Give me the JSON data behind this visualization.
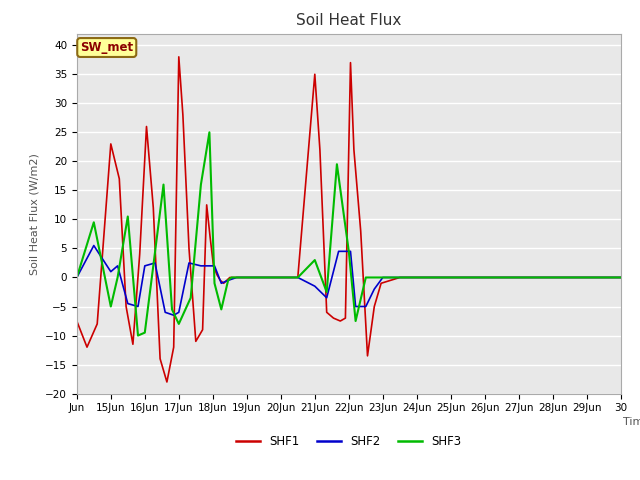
{
  "title": "Soil Heat Flux",
  "ylabel": "Soil Heat Flux (W/m2)",
  "xlabel": "Time",
  "ylim": [
    -20,
    42
  ],
  "yticks": [
    -20,
    -15,
    -10,
    -5,
    0,
    5,
    10,
    15,
    20,
    25,
    30,
    35,
    40
  ],
  "plot_bg_color": "#e8e8e8",
  "fig_bg_color": "#ffffff",
  "annotation_text": "SW_met",
  "annotation_bg": "#ffff99",
  "annotation_border": "#8b6914",
  "annotation_text_color": "#8b0000",
  "series_colors": [
    "#cc0000",
    "#0000cc",
    "#00bb00"
  ],
  "series_names": [
    "SHF1",
    "SHF2",
    "SHF3"
  ],
  "x_start_day": 14,
  "x_end_day": 30,
  "x_tick_days": [
    14,
    15,
    16,
    17,
    18,
    19,
    20,
    21,
    22,
    23,
    24,
    25,
    26,
    27,
    28,
    29,
    30
  ],
  "x_tick_labels": [
    "Jun",
    "15Jun",
    "16Jun",
    "17Jun",
    "18Jun",
    "19Jun",
    "20Jun",
    "21Jun",
    "22Jun",
    "23Jun",
    "24Jun",
    "25Jun",
    "26Jun",
    "27Jun",
    "28Jun",
    "29Jun",
    "30"
  ],
  "shf1_x": [
    14.0,
    14.3,
    14.6,
    15.0,
    15.25,
    15.45,
    15.65,
    15.85,
    16.05,
    16.25,
    16.45,
    16.65,
    16.85,
    17.0,
    17.12,
    17.3,
    17.5,
    17.7,
    17.82,
    17.92,
    18.02,
    18.12,
    18.22,
    18.32,
    18.5,
    18.7,
    18.9,
    19.05,
    19.2,
    19.5,
    20.0,
    20.5,
    21.0,
    21.15,
    21.35,
    21.55,
    21.75,
    21.9,
    22.05,
    22.15,
    22.35,
    22.55,
    22.75,
    22.95,
    23.5,
    24.0,
    25.0,
    26.0,
    27.0,
    28.0,
    29.0,
    30.0
  ],
  "shf1_y": [
    -7.5,
    -12.0,
    -8.0,
    23.0,
    17.0,
    -5.0,
    -11.5,
    4.0,
    26.0,
    12.0,
    -14.0,
    -18.0,
    -12.0,
    38.0,
    28.0,
    5.0,
    -11.0,
    -9.0,
    12.5,
    7.0,
    2.0,
    0.5,
    -0.5,
    -1.0,
    0.0,
    0.0,
    0.0,
    0.0,
    0.0,
    0.0,
    0.0,
    0.0,
    35.0,
    22.0,
    -6.0,
    -7.0,
    -7.5,
    -7.0,
    37.0,
    22.0,
    8.0,
    -13.5,
    -5.0,
    -1.0,
    0.0,
    0.0,
    0.0,
    0.0,
    0.0,
    0.0,
    0.0,
    0.0
  ],
  "shf2_x": [
    14.0,
    14.5,
    15.0,
    15.2,
    15.5,
    15.8,
    16.0,
    16.3,
    16.6,
    16.85,
    17.0,
    17.3,
    17.65,
    17.85,
    18.05,
    18.25,
    18.45,
    18.7,
    19.0,
    19.5,
    20.0,
    20.5,
    21.0,
    21.35,
    21.7,
    22.05,
    22.2,
    22.5,
    22.75,
    23.0,
    24.0,
    25.0,
    30.0
  ],
  "shf2_y": [
    0.0,
    5.5,
    1.0,
    2.0,
    -4.5,
    -5.0,
    2.0,
    2.5,
    -6.0,
    -6.5,
    -6.0,
    2.5,
    2.0,
    2.0,
    2.0,
    -1.0,
    -0.5,
    0.0,
    0.0,
    0.0,
    0.0,
    0.0,
    -1.5,
    -3.5,
    4.5,
    4.5,
    -5.0,
    -5.0,
    -2.0,
    0.0,
    0.0,
    0.0,
    0.0
  ],
  "shf3_x": [
    14.0,
    14.5,
    15.0,
    15.2,
    15.5,
    15.8,
    16.0,
    16.25,
    16.55,
    16.8,
    17.0,
    17.35,
    17.65,
    17.9,
    18.05,
    18.25,
    18.45,
    18.55,
    18.8,
    19.0,
    19.5,
    20.0,
    20.5,
    21.0,
    21.35,
    21.65,
    22.0,
    22.2,
    22.5,
    22.7,
    22.9,
    23.0,
    24.0,
    25.0,
    30.0
  ],
  "shf3_y": [
    0.0,
    9.5,
    -5.0,
    0.0,
    10.5,
    -10.0,
    -9.5,
    2.0,
    16.0,
    -5.5,
    -8.0,
    -3.5,
    16.0,
    25.0,
    -1.0,
    -5.5,
    -0.5,
    0.0,
    0.0,
    0.0,
    0.0,
    0.0,
    0.0,
    3.0,
    -2.5,
    19.5,
    4.5,
    -7.5,
    0.0,
    0.0,
    0.0,
    0.0,
    0.0,
    0.0,
    0.0
  ]
}
